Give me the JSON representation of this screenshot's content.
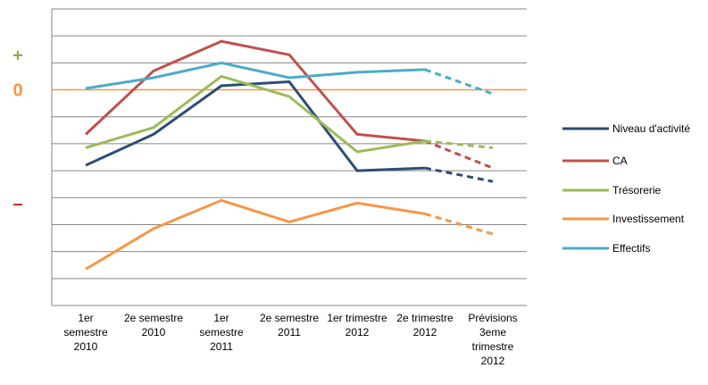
{
  "chart_data": {
    "type": "line",
    "categories": [
      [
        "1er",
        "semestre",
        "2010"
      ],
      [
        "2e semestre",
        "2010"
      ],
      [
        "1er",
        "semestre",
        "2011"
      ],
      [
        "2e semestre",
        "2011"
      ],
      [
        "1er trimestre",
        "2012"
      ],
      [
        "2e trimestre",
        "2012"
      ],
      [
        "Prévisions",
        "3eme",
        "trimestre",
        "2012"
      ]
    ],
    "series": [
      {
        "name": "Niveau d'activité",
        "color": "#2c4d75",
        "values": [
          -2.8,
          -1.65,
          0.15,
          0.3,
          -3.0,
          -2.9,
          -3.4
        ]
      },
      {
        "name": "CA",
        "color": "#c0504d",
        "values": [
          -1.65,
          0.7,
          1.8,
          1.3,
          -1.65,
          -1.9,
          -2.9
        ]
      },
      {
        "name": "Trésorerie",
        "color": "#9bbb59",
        "values": [
          -2.15,
          -1.4,
          0.5,
          -0.25,
          -2.3,
          -1.9,
          -2.15
        ]
      },
      {
        "name": "Investissement",
        "color": "#f79646",
        "values": [
          -6.65,
          -5.15,
          -4.1,
          -4.9,
          -4.2,
          -4.6,
          -5.35
        ]
      },
      {
        "name": "Effectifs",
        "color": "#4bacc6",
        "values": [
          0.05,
          0.45,
          1.0,
          0.45,
          0.65,
          0.75,
          -0.15
        ]
      }
    ],
    "dashed_last_segment": true,
    "ylim": [
      -8,
      3
    ],
    "yticks": [
      3,
      2,
      1,
      0,
      -1,
      -2,
      -3,
      -4,
      -5,
      -6,
      -7
    ],
    "grid": true,
    "zero_line_color": "#f79646",
    "annotations": [
      {
        "text": "+",
        "y": 1.3,
        "color": "#8db04a"
      },
      {
        "text": "0",
        "y": 0,
        "color": "#f79646"
      },
      {
        "text": "–",
        "y": -4.2,
        "color": "#d9261c"
      }
    ],
    "legend": "right"
  }
}
